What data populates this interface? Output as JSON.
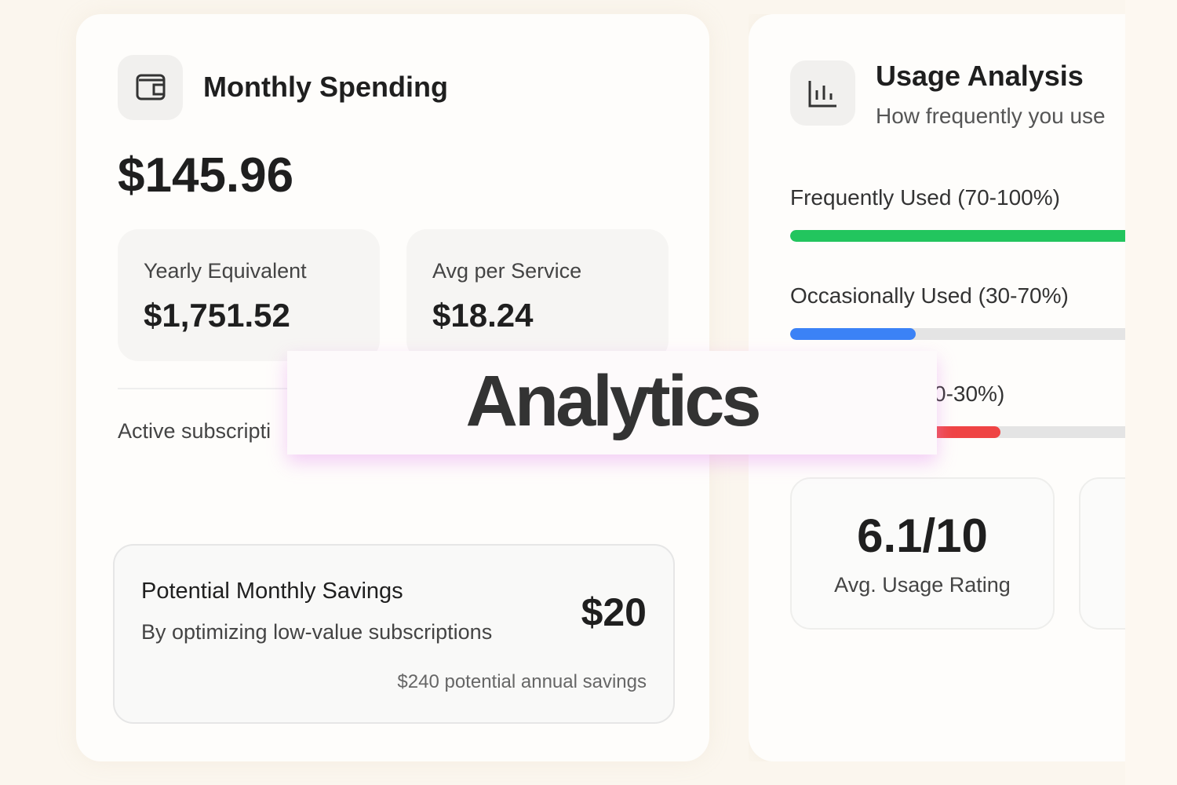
{
  "spending": {
    "title": "Monthly Spending",
    "amount": "$145.96",
    "stats": [
      {
        "label": "Yearly Equivalent",
        "value": "$1,751.52"
      },
      {
        "label": "Avg per Service",
        "value": "$18.24"
      }
    ],
    "active_label": "Active subscripti",
    "savings": {
      "title": "Potential Monthly Savings",
      "subtitle": "By optimizing low-value subscriptions",
      "amount": "$20",
      "annual": "$240 potential annual savings"
    }
  },
  "usage": {
    "title": "Usage Analysis",
    "subtitle": "How frequently you use",
    "bars": [
      {
        "label": "Frequently Used (70-100%)",
        "percent": 100,
        "color": "#22c55e"
      },
      {
        "label": "Occasionally Used (30-70%)",
        "percent": 34,
        "color": "#3b82f6"
      },
      {
        "label": "0-30%)",
        "percent": 57,
        "color": "#ef4444"
      }
    ],
    "rating": {
      "value": "6.1/10",
      "label": "Avg. Usage Rating"
    }
  },
  "overlay": {
    "title": "Analytics"
  }
}
